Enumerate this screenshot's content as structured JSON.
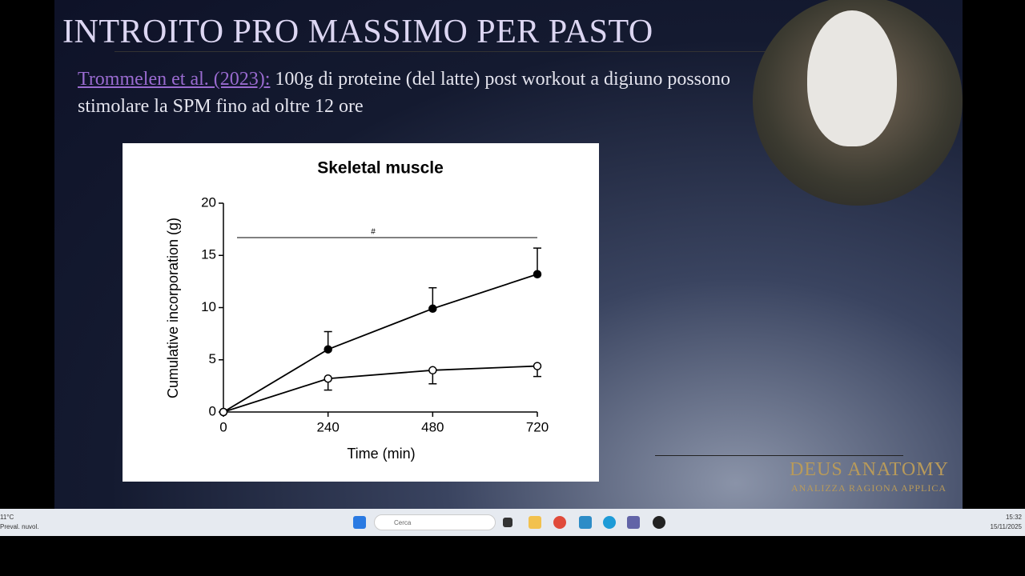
{
  "slide": {
    "title": "INTROITO PRO MASSIMO PER PASTO",
    "citation": "Trommelen et al. (2023):",
    "body": "100g di proteine (del latte) post workout a digiuno possono stimolare la SPM fino ad oltre 12 ore",
    "logo": "DEUS ANATOMY",
    "logo_subtitle": "ANALIZZA RAGIONA APPLICA"
  },
  "chart_data": {
    "type": "line",
    "title": "Skeletal muscle",
    "x_label": "Time (min)",
    "y_label": "Cumulative incorporation (g)",
    "x": [
      0,
      240,
      480,
      720
    ],
    "series": [
      {
        "color": "#000000",
        "marker_fill": "#000000",
        "error_direction": "up",
        "values": [
          0,
          6.0,
          9.9,
          13.2
        ],
        "errors": [
          null,
          1.7,
          2.0,
          2.5
        ]
      },
      {
        "color": "#000000",
        "marker_fill": "#ffffff",
        "error_direction": "down",
        "values": [
          0,
          3.2,
          4.0,
          4.4
        ],
        "errors": [
          null,
          1.1,
          1.3,
          1.0
        ]
      }
    ],
    "annotation": "#",
    "xlim": [
      0,
      720
    ],
    "xticks": [
      0,
      240,
      480,
      720
    ],
    "ylim": [
      0,
      20
    ],
    "yticks": [
      0,
      5,
      10,
      15,
      20
    ],
    "grid": false
  },
  "taskbar": {
    "temperature": "11°C",
    "weather": "Preval. nuvol.",
    "search": "Cerca",
    "time": "15:32",
    "date": "15/11/2025"
  }
}
